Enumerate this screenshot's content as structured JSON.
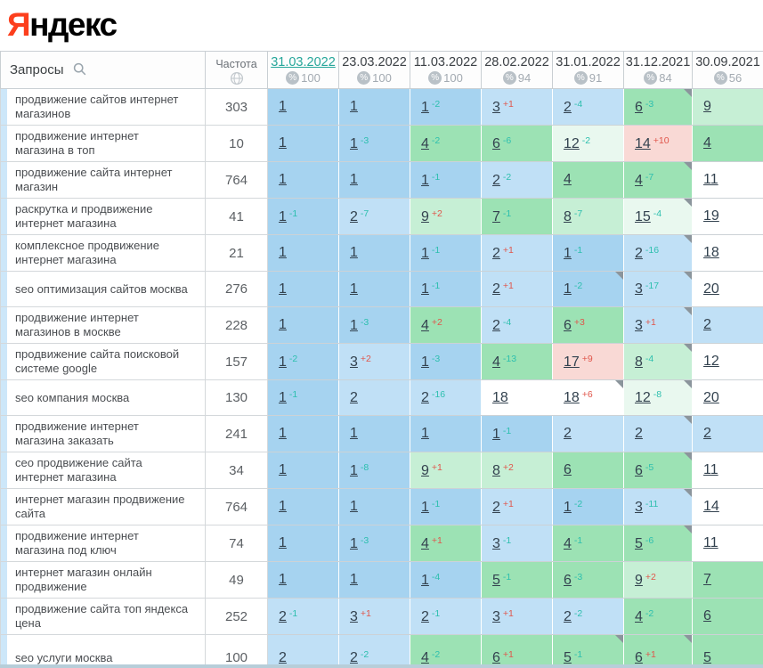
{
  "logo": {
    "first_letter": "Я",
    "rest": "ндекс"
  },
  "table": {
    "queries_header": "Запросы",
    "frequency_header": "Частота",
    "columns": [
      {
        "date": "31.03.2022",
        "percent": "100",
        "selected": true
      },
      {
        "date": "23.03.2022",
        "percent": "100",
        "selected": false
      },
      {
        "date": "11.03.2022",
        "percent": "100",
        "selected": false
      },
      {
        "date": "28.02.2022",
        "percent": "94",
        "selected": false
      },
      {
        "date": "31.01.2022",
        "percent": "91",
        "selected": false
      },
      {
        "date": "31.12.2021",
        "percent": "84",
        "selected": false
      },
      {
        "date": "30.09.2021",
        "percent": "56",
        "selected": false
      }
    ],
    "rows": [
      {
        "query": "продвижение сайтов интернет магазинов",
        "frequency": "303",
        "cells": [
          {
            "pos": "1",
            "delta": "",
            "tone": "b1",
            "corner": false
          },
          {
            "pos": "1",
            "delta": "",
            "tone": "b1",
            "corner": false
          },
          {
            "pos": "1",
            "delta": "-2",
            "tone": "b1",
            "corner": false
          },
          {
            "pos": "3",
            "delta": "+1",
            "tone": "b2",
            "corner": false
          },
          {
            "pos": "2",
            "delta": "-4",
            "tone": "b2",
            "corner": false
          },
          {
            "pos": "6",
            "delta": "-3",
            "tone": "g1",
            "corner": true
          },
          {
            "pos": "9",
            "delta": "",
            "tone": "g2",
            "corner": false
          }
        ]
      },
      {
        "query": "продвижение интернет магазина в топ",
        "frequency": "10",
        "cells": [
          {
            "pos": "1",
            "delta": "",
            "tone": "b1",
            "corner": false
          },
          {
            "pos": "1",
            "delta": "-3",
            "tone": "b1",
            "corner": false
          },
          {
            "pos": "4",
            "delta": "-2",
            "tone": "g1",
            "corner": false
          },
          {
            "pos": "6",
            "delta": "-6",
            "tone": "g1",
            "corner": false
          },
          {
            "pos": "12",
            "delta": "-2",
            "tone": "g3",
            "corner": false
          },
          {
            "pos": "14",
            "delta": "+10",
            "tone": "pk",
            "corner": false
          },
          {
            "pos": "4",
            "delta": "",
            "tone": "g1",
            "corner": false
          }
        ]
      },
      {
        "query": "продвижение сайта интернет магазин",
        "frequency": "764",
        "cells": [
          {
            "pos": "1",
            "delta": "",
            "tone": "b1",
            "corner": false
          },
          {
            "pos": "1",
            "delta": "",
            "tone": "b1",
            "corner": false
          },
          {
            "pos": "1",
            "delta": "-1",
            "tone": "b1",
            "corner": false
          },
          {
            "pos": "2",
            "delta": "-2",
            "tone": "b2",
            "corner": false
          },
          {
            "pos": "4",
            "delta": "",
            "tone": "g1",
            "corner": false
          },
          {
            "pos": "4",
            "delta": "-7",
            "tone": "g1",
            "corner": true
          },
          {
            "pos": "11",
            "delta": "",
            "tone": "wh",
            "corner": false
          }
        ]
      },
      {
        "query": "раскрутка и продвижение интернет магазина",
        "frequency": "41",
        "cells": [
          {
            "pos": "1",
            "delta": "-1",
            "tone": "b1",
            "corner": false
          },
          {
            "pos": "2",
            "delta": "-7",
            "tone": "b2",
            "corner": false
          },
          {
            "pos": "9",
            "delta": "+2",
            "tone": "g2",
            "corner": false
          },
          {
            "pos": "7",
            "delta": "-1",
            "tone": "g1",
            "corner": false
          },
          {
            "pos": "8",
            "delta": "-7",
            "tone": "g2",
            "corner": false
          },
          {
            "pos": "15",
            "delta": "-4",
            "tone": "g3",
            "corner": true
          },
          {
            "pos": "19",
            "delta": "",
            "tone": "wh",
            "corner": false
          }
        ]
      },
      {
        "query": "комплексное продвижение интернет магазина",
        "frequency": "21",
        "cells": [
          {
            "pos": "1",
            "delta": "",
            "tone": "b1",
            "corner": false
          },
          {
            "pos": "1",
            "delta": "",
            "tone": "b1",
            "corner": false
          },
          {
            "pos": "1",
            "delta": "-1",
            "tone": "b1",
            "corner": false
          },
          {
            "pos": "2",
            "delta": "+1",
            "tone": "b2",
            "corner": false
          },
          {
            "pos": "1",
            "delta": "-1",
            "tone": "b1",
            "corner": false
          },
          {
            "pos": "2",
            "delta": "-16",
            "tone": "b2",
            "corner": true
          },
          {
            "pos": "18",
            "delta": "",
            "tone": "wh",
            "corner": false
          }
        ]
      },
      {
        "query": "seo оптимизация сайтов москва",
        "frequency": "276",
        "cells": [
          {
            "pos": "1",
            "delta": "",
            "tone": "b1",
            "corner": false
          },
          {
            "pos": "1",
            "delta": "",
            "tone": "b1",
            "corner": false
          },
          {
            "pos": "1",
            "delta": "-1",
            "tone": "b1",
            "corner": false
          },
          {
            "pos": "2",
            "delta": "+1",
            "tone": "b2",
            "corner": false
          },
          {
            "pos": "1",
            "delta": "-2",
            "tone": "b1",
            "corner": true
          },
          {
            "pos": "3",
            "delta": "-17",
            "tone": "b2",
            "corner": true
          },
          {
            "pos": "20",
            "delta": "",
            "tone": "wh",
            "corner": false
          }
        ]
      },
      {
        "query": "продвижение интернет магазинов в москве",
        "frequency": "228",
        "cells": [
          {
            "pos": "1",
            "delta": "",
            "tone": "b1",
            "corner": false
          },
          {
            "pos": "1",
            "delta": "-3",
            "tone": "b1",
            "corner": false
          },
          {
            "pos": "4",
            "delta": "+2",
            "tone": "g1",
            "corner": false
          },
          {
            "pos": "2",
            "delta": "-4",
            "tone": "b2",
            "corner": false
          },
          {
            "pos": "6",
            "delta": "+3",
            "tone": "g1",
            "corner": false
          },
          {
            "pos": "3",
            "delta": "+1",
            "tone": "b2",
            "corner": true
          },
          {
            "pos": "2",
            "delta": "",
            "tone": "b2",
            "corner": false
          }
        ]
      },
      {
        "query": "продвижение сайта поисковой системе google",
        "frequency": "157",
        "cells": [
          {
            "pos": "1",
            "delta": "-2",
            "tone": "b1",
            "corner": false
          },
          {
            "pos": "3",
            "delta": "+2",
            "tone": "b2",
            "corner": false
          },
          {
            "pos": "1",
            "delta": "-3",
            "tone": "b1",
            "corner": false
          },
          {
            "pos": "4",
            "delta": "-13",
            "tone": "g1",
            "corner": false
          },
          {
            "pos": "17",
            "delta": "+9",
            "tone": "pk",
            "corner": false
          },
          {
            "pos": "8",
            "delta": "-4",
            "tone": "g2",
            "corner": true
          },
          {
            "pos": "12",
            "delta": "",
            "tone": "wh",
            "corner": false
          }
        ]
      },
      {
        "query": "seo компания москва",
        "frequency": "130",
        "cells": [
          {
            "pos": "1",
            "delta": "-1",
            "tone": "b1",
            "corner": false
          },
          {
            "pos": "2",
            "delta": "",
            "tone": "b2",
            "corner": false
          },
          {
            "pos": "2",
            "delta": "-16",
            "tone": "b2",
            "corner": false
          },
          {
            "pos": "18",
            "delta": "",
            "tone": "wh",
            "corner": false
          },
          {
            "pos": "18",
            "delta": "+6",
            "tone": "wh",
            "corner": true
          },
          {
            "pos": "12",
            "delta": "-8",
            "tone": "g3",
            "corner": true
          },
          {
            "pos": "20",
            "delta": "",
            "tone": "wh",
            "corner": false
          }
        ]
      },
      {
        "query": "продвижение интернет магазина заказать",
        "frequency": "241",
        "cells": [
          {
            "pos": "1",
            "delta": "",
            "tone": "b1",
            "corner": false
          },
          {
            "pos": "1",
            "delta": "",
            "tone": "b1",
            "corner": false
          },
          {
            "pos": "1",
            "delta": "",
            "tone": "b1",
            "corner": false
          },
          {
            "pos": "1",
            "delta": "-1",
            "tone": "b1",
            "corner": false
          },
          {
            "pos": "2",
            "delta": "",
            "tone": "b2",
            "corner": false
          },
          {
            "pos": "2",
            "delta": "",
            "tone": "b2",
            "corner": true
          },
          {
            "pos": "2",
            "delta": "",
            "tone": "b2",
            "corner": false
          }
        ]
      },
      {
        "query": "сео продвижение сайта интернет магазина",
        "frequency": "34",
        "cells": [
          {
            "pos": "1",
            "delta": "",
            "tone": "b1",
            "corner": false
          },
          {
            "pos": "1",
            "delta": "-8",
            "tone": "b1",
            "corner": false
          },
          {
            "pos": "9",
            "delta": "+1",
            "tone": "g2",
            "corner": false
          },
          {
            "pos": "8",
            "delta": "+2",
            "tone": "g2",
            "corner": false
          },
          {
            "pos": "6",
            "delta": "",
            "tone": "g1",
            "corner": false
          },
          {
            "pos": "6",
            "delta": "-5",
            "tone": "g1",
            "corner": true
          },
          {
            "pos": "11",
            "delta": "",
            "tone": "wh",
            "corner": false
          }
        ]
      },
      {
        "query": "интернет магазин продвижение сайта",
        "frequency": "764",
        "cells": [
          {
            "pos": "1",
            "delta": "",
            "tone": "b1",
            "corner": false
          },
          {
            "pos": "1",
            "delta": "",
            "tone": "b1",
            "corner": false
          },
          {
            "pos": "1",
            "delta": "-1",
            "tone": "b1",
            "corner": false
          },
          {
            "pos": "2",
            "delta": "+1",
            "tone": "b2",
            "corner": false
          },
          {
            "pos": "1",
            "delta": "-2",
            "tone": "b1",
            "corner": false
          },
          {
            "pos": "3",
            "delta": "-11",
            "tone": "b2",
            "corner": true
          },
          {
            "pos": "14",
            "delta": "",
            "tone": "wh",
            "corner": false
          }
        ]
      },
      {
        "query": "продвижение интернет магазина под ключ",
        "frequency": "74",
        "cells": [
          {
            "pos": "1",
            "delta": "",
            "tone": "b1",
            "corner": false
          },
          {
            "pos": "1",
            "delta": "-3",
            "tone": "b1",
            "corner": false
          },
          {
            "pos": "4",
            "delta": "+1",
            "tone": "g1",
            "corner": false
          },
          {
            "pos": "3",
            "delta": "-1",
            "tone": "b2",
            "corner": false
          },
          {
            "pos": "4",
            "delta": "-1",
            "tone": "g1",
            "corner": false
          },
          {
            "pos": "5",
            "delta": "-6",
            "tone": "g1",
            "corner": true
          },
          {
            "pos": "11",
            "delta": "",
            "tone": "wh",
            "corner": false
          }
        ]
      },
      {
        "query": "интернет магазин онлайн продвижение",
        "frequency": "49",
        "cells": [
          {
            "pos": "1",
            "delta": "",
            "tone": "b1",
            "corner": false
          },
          {
            "pos": "1",
            "delta": "",
            "tone": "b1",
            "corner": false
          },
          {
            "pos": "1",
            "delta": "-4",
            "tone": "b1",
            "corner": false
          },
          {
            "pos": "5",
            "delta": "-1",
            "tone": "g1",
            "corner": false
          },
          {
            "pos": "6",
            "delta": "-3",
            "tone": "g1",
            "corner": false
          },
          {
            "pos": "9",
            "delta": "+2",
            "tone": "g2",
            "corner": false
          },
          {
            "pos": "7",
            "delta": "",
            "tone": "g1",
            "corner": false
          }
        ]
      },
      {
        "query": "продвижение сайта топ яндекса цена",
        "frequency": "252",
        "cells": [
          {
            "pos": "2",
            "delta": "-1",
            "tone": "b2",
            "corner": false
          },
          {
            "pos": "3",
            "delta": "+1",
            "tone": "b2",
            "corner": false
          },
          {
            "pos": "2",
            "delta": "-1",
            "tone": "b2",
            "corner": false
          },
          {
            "pos": "3",
            "delta": "+1",
            "tone": "b2",
            "corner": false
          },
          {
            "pos": "2",
            "delta": "-2",
            "tone": "b2",
            "corner": false
          },
          {
            "pos": "4",
            "delta": "-2",
            "tone": "g1",
            "corner": false
          },
          {
            "pos": "6",
            "delta": "",
            "tone": "g1",
            "corner": false
          }
        ]
      },
      {
        "query": "seo услуги москва",
        "frequency": "100",
        "cells": [
          {
            "pos": "2",
            "delta": "",
            "tone": "b2",
            "corner": false
          },
          {
            "pos": "2",
            "delta": "-2",
            "tone": "b2",
            "corner": false
          },
          {
            "pos": "4",
            "delta": "-2",
            "tone": "g1",
            "corner": false
          },
          {
            "pos": "6",
            "delta": "+1",
            "tone": "g1",
            "corner": false
          },
          {
            "pos": "5",
            "delta": "-1",
            "tone": "g1",
            "corner": true
          },
          {
            "pos": "6",
            "delta": "+1",
            "tone": "g1",
            "corner": true
          },
          {
            "pos": "5",
            "delta": "",
            "tone": "g1",
            "corner": false
          }
        ]
      }
    ]
  },
  "colors": {
    "b1": "#a6d3f0",
    "b2": "#c0e0f6",
    "g1": "#9ce2b4",
    "g2": "#c6efd5",
    "g3": "#e9f8ef",
    "pk": "#f9d9d5",
    "wh": "#ffffff",
    "delta_improve": "#2dbfae",
    "delta_drop": "#e0564b",
    "accent": "#26a69a",
    "logo_red": "#fc3f1d"
  }
}
